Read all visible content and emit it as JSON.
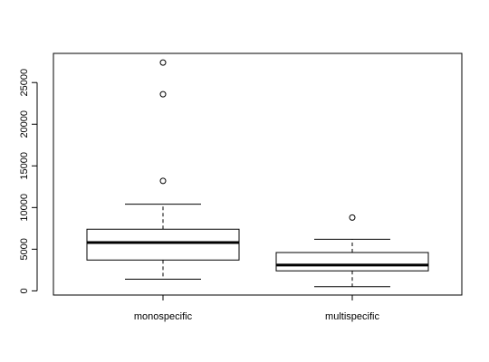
{
  "chart_data": {
    "type": "boxplot",
    "title": "",
    "xlabel": "",
    "ylabel": "",
    "ylim": [
      -500,
      28500
    ],
    "y_ticks": [
      0,
      5000,
      10000,
      15000,
      20000,
      25000
    ],
    "y_tick_labels": [
      "0",
      "5000",
      "10000",
      "15000",
      "20000",
      "25000"
    ],
    "categories": [
      "monospecific",
      "multispecific"
    ],
    "boxes": [
      {
        "name": "monospecific",
        "whisker_low": 1400,
        "q1": 3700,
        "median": 5800,
        "q3": 7400,
        "whisker_high": 10400,
        "outliers": [
          13200,
          23600,
          27400
        ]
      },
      {
        "name": "multispecific",
        "whisker_low": 500,
        "q1": 2400,
        "median": 3100,
        "q3": 4600,
        "whisker_high": 6200,
        "outliers": [
          8800
        ]
      }
    ]
  }
}
